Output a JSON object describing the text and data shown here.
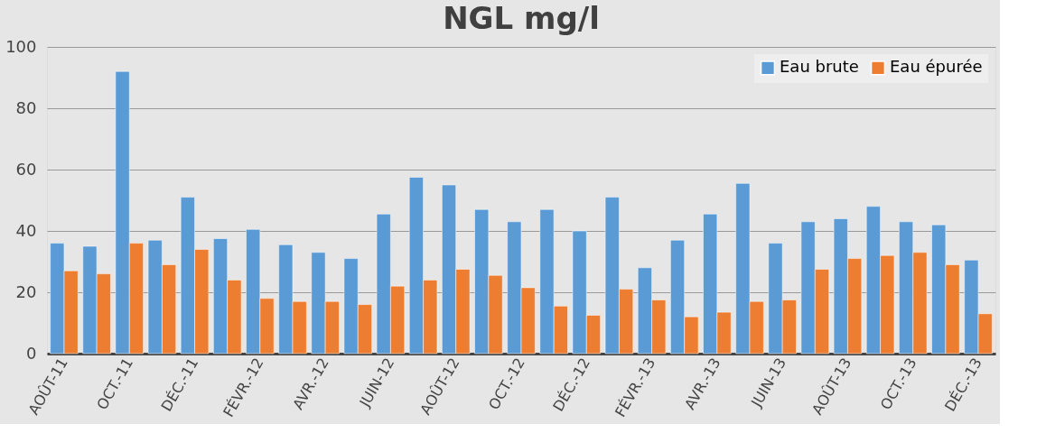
{
  "chart_data": {
    "type": "bar",
    "title": "NGL mg/l",
    "categories": [
      "AOÛT-11",
      null,
      "OCT.-11",
      null,
      "DÉC.-11",
      null,
      "FÉVR.-12",
      null,
      "AVR.-12",
      null,
      "JUIN-12",
      null,
      "AOÛT-12",
      null,
      "OCT.-12",
      null,
      "DÉC.-12",
      null,
      "FÉVR.-13",
      null,
      "AVR.-13",
      null,
      "JUIN-13",
      null,
      "AOÛT-13",
      null,
      "OCT.-13",
      null,
      "DÉC.-13"
    ],
    "series": [
      {
        "name": "Eau brute",
        "color": "#5b9bd5",
        "values": [
          36,
          35,
          92,
          37,
          51,
          37.5,
          40.5,
          35.5,
          33,
          31,
          45.5,
          57.5,
          55,
          47,
          43,
          47,
          40,
          51,
          28,
          37,
          45.5,
          55.5,
          36,
          43,
          44,
          48,
          43,
          42,
          30.5
        ]
      },
      {
        "name": "Eau épurée",
        "color": "#ed7d31",
        "values": [
          27,
          26,
          36,
          29,
          34,
          24,
          18,
          17,
          17,
          16,
          22,
          24,
          27.5,
          25.5,
          21.5,
          15.5,
          12.5,
          21,
          17.5,
          12,
          13.5,
          17,
          17.5,
          27.5,
          31,
          32,
          33,
          29,
          13
        ]
      }
    ],
    "ylim": [
      0,
      100
    ],
    "yticks": [
      0,
      20,
      40,
      60,
      80,
      100
    ],
    "grid": "y",
    "legend": "top right"
  }
}
